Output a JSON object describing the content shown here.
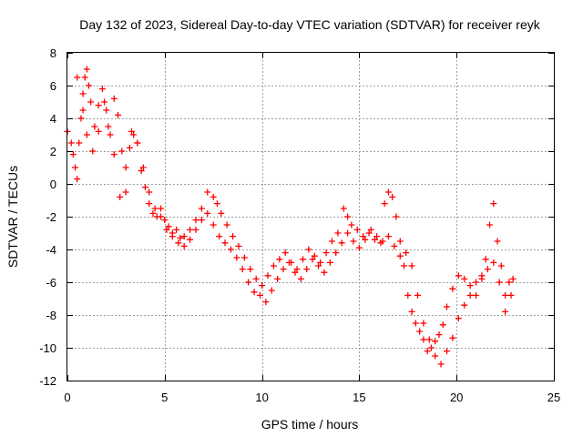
{
  "chart_data": {
    "type": "scatter",
    "title": "Day 132 of 2023, Sidereal Day-to-day VTEC variation (SDTVAR) for receiver reyk",
    "xlabel": "GPS time / hours",
    "ylabel": "SDTVAR / TECUs",
    "xlim": [
      0,
      25
    ],
    "ylim": [
      -12,
      8
    ],
    "xticks": [
      0,
      5,
      10,
      15,
      20,
      25
    ],
    "yticks": [
      -12,
      -10,
      -8,
      -6,
      -4,
      -2,
      0,
      2,
      4,
      6,
      8
    ],
    "grid": true,
    "marker": "+",
    "series": [
      {
        "name": "reyk",
        "color": "#ff0000",
        "x": [
          0.0,
          0.2,
          0.4,
          0.5,
          0.6,
          0.7,
          0.8,
          0.9,
          1.0,
          1.1,
          1.2,
          1.4,
          1.6,
          1.8,
          2.0,
          2.2,
          2.4,
          2.6,
          2.8,
          3.0,
          3.2,
          3.4,
          3.6,
          3.8,
          4.0,
          4.2,
          4.4,
          4.6,
          4.8,
          5.0,
          5.2,
          5.4,
          5.6,
          5.8,
          6.0,
          6.3,
          6.6,
          6.9,
          7.2,
          7.5,
          7.7,
          7.9,
          8.2,
          8.5,
          8.8,
          9.1,
          9.4,
          9.7,
          10.0,
          10.3,
          10.6,
          10.9,
          11.2,
          11.5,
          11.8,
          12.1,
          12.4,
          12.7,
          13.0,
          13.3,
          13.6,
          13.9,
          14.2,
          14.4,
          14.6,
          14.9,
          15.2,
          15.5,
          15.8,
          16.1,
          16.3,
          16.5,
          16.7,
          16.9,
          17.1,
          17.3,
          17.5,
          17.7,
          17.9,
          18.1,
          18.3,
          18.5,
          18.7,
          18.9,
          19.1,
          19.3,
          19.5,
          19.8,
          20.1,
          20.4,
          20.7,
          21.0,
          21.3,
          21.5,
          21.7,
          21.9,
          22.1,
          22.3,
          22.5,
          22.7,
          22.9
        ],
        "y": [
          3.2,
          2.5,
          1.0,
          0.3,
          2.5,
          4.0,
          5.5,
          6.5,
          7.0,
          6.0,
          5.0,
          3.5,
          4.8,
          5.8,
          4.5,
          3.0,
          5.2,
          4.2,
          2.0,
          1.0,
          2.2,
          3.0,
          2.5,
          0.8,
          -0.2,
          -1.2,
          -1.8,
          -2.0,
          -1.5,
          -2.2,
          -2.6,
          -3.0,
          -2.8,
          -3.3,
          -3.2,
          -2.8,
          -2.2,
          -1.5,
          -0.5,
          -0.8,
          -1.2,
          -1.8,
          -2.5,
          -3.2,
          -3.8,
          -4.5,
          -5.2,
          -5.8,
          -6.2,
          -5.6,
          -5.0,
          -4.6,
          -4.2,
          -4.8,
          -5.2,
          -4.6,
          -4.0,
          -4.4,
          -4.8,
          -4.2,
          -3.5,
          -3.0,
          -1.5,
          -2.0,
          -2.5,
          -2.8,
          -3.2,
          -3.0,
          -3.4,
          -3.6,
          -1.2,
          -0.5,
          -0.8,
          -2.0,
          -3.5,
          -5.0,
          -6.8,
          -7.8,
          -8.5,
          -9.0,
          -9.5,
          -10.2,
          -10.0,
          -9.6,
          -9.2,
          -8.6,
          -7.5,
          -6.4,
          -5.6,
          -5.8,
          -6.2,
          -6.8,
          -5.8,
          -4.6,
          -2.5,
          -1.2,
          -3.5,
          -5.0,
          -6.8,
          -6.0,
          -5.8
        ]
      },
      {
        "name": "reyk",
        "color": "#ff0000",
        "x": [
          0.3,
          0.5,
          0.8,
          1.0,
          1.3,
          1.6,
          1.9,
          2.1,
          2.4,
          2.7,
          3.0,
          3.3,
          3.6,
          3.9,
          4.2,
          4.5,
          4.8,
          5.1,
          5.4,
          5.7,
          6.0,
          6.3,
          6.6,
          6.9,
          7.2,
          7.5,
          7.8,
          8.1,
          8.4,
          8.7,
          9.0,
          9.3,
          9.6,
          9.9,
          10.2,
          10.5,
          10.8,
          11.1,
          11.4,
          11.7,
          12.0,
          12.3,
          12.6,
          12.9,
          13.2,
          13.5,
          13.8,
          14.1,
          14.4,
          14.7,
          15.0,
          15.3,
          15.6,
          15.9,
          16.2,
          16.5,
          16.8,
          17.1,
          17.4,
          17.7,
          18.0,
          18.3,
          18.6,
          18.9,
          19.2,
          19.5,
          19.8,
          20.1,
          20.4,
          20.7,
          21.0,
          21.3,
          21.6,
          21.9,
          22.2,
          22.5,
          22.8
        ],
        "y": [
          1.8,
          6.5,
          4.5,
          3.0,
          2.0,
          3.2,
          5.0,
          3.5,
          1.8,
          -0.8,
          -0.5,
          3.2,
          2.5,
          1.0,
          -0.5,
          -1.5,
          -2.0,
          -2.8,
          -3.2,
          -3.6,
          -3.8,
          -3.4,
          -2.8,
          -2.2,
          -1.8,
          -2.5,
          -3.2,
          -3.6,
          -4.0,
          -4.5,
          -5.2,
          -6.0,
          -6.6,
          -6.8,
          -7.2,
          -6.5,
          -5.8,
          -5.2,
          -4.8,
          -5.4,
          -5.8,
          -5.2,
          -4.6,
          -5.0,
          -5.4,
          -4.8,
          -4.2,
          -3.6,
          -3.0,
          -3.5,
          -3.9,
          -3.4,
          -2.8,
          -3.2,
          -3.5,
          -3.2,
          -3.8,
          -4.4,
          -4.2,
          -5.0,
          -6.8,
          -8.5,
          -9.5,
          -10.5,
          -11.0,
          -10.2,
          -9.4,
          -8.2,
          -7.4,
          -6.8,
          -6.0,
          -5.6,
          -5.2,
          -4.8,
          -6.0,
          -7.8,
          -6.8
        ]
      }
    ]
  }
}
